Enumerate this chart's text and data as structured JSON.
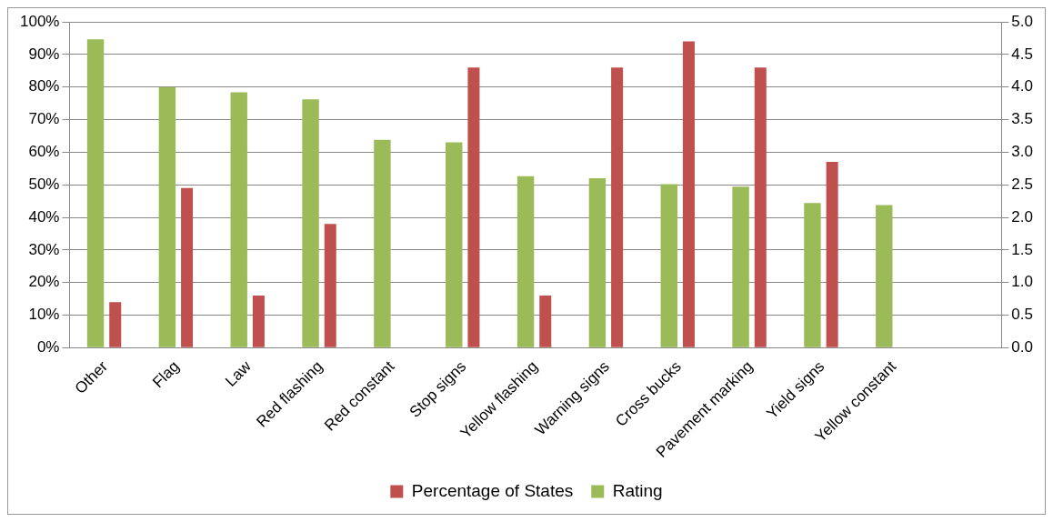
{
  "chart_data": {
    "type": "bar",
    "categories": [
      "Other",
      "Flag",
      "Law",
      "Red flashing",
      "Red constant",
      "Stop signs",
      "Yellow flashing",
      "Warning signs",
      "Cross bucks",
      "Pavement marking",
      "Yield signs",
      "Yellow constant",
      null
    ],
    "series": [
      {
        "name": "Percentage of States",
        "color": "#c0504d",
        "values": [
          14,
          49,
          16,
          38,
          null,
          86,
          16,
          86,
          94,
          86,
          57,
          null,
          null
        ]
      },
      {
        "name": "Rating",
        "color": "#9bbb59",
        "axis": "y2",
        "values": [
          4.73,
          4.0,
          3.92,
          3.81,
          3.19,
          3.15,
          2.63,
          2.6,
          2.51,
          2.47,
          2.22,
          2.19,
          null
        ]
      }
    ],
    "ylim": [
      0,
      100
    ],
    "yticks": [
      {
        "value": 0,
        "label": "0%"
      },
      {
        "value": 10,
        "label": "10%"
      },
      {
        "value": 20,
        "label": "20%"
      },
      {
        "value": 30,
        "label": "30%"
      },
      {
        "value": 40,
        "label": "40%"
      },
      {
        "value": 50,
        "label": "50%"
      },
      {
        "value": 60,
        "label": "60%"
      },
      {
        "value": 70,
        "label": "70%"
      },
      {
        "value": 80,
        "label": "80%"
      },
      {
        "value": 90,
        "label": "90%"
      },
      {
        "value": 100,
        "label": "100%"
      }
    ],
    "y2lim": [
      0,
      5
    ],
    "y2ticks": [
      {
        "value": 0,
        "label": "0.0"
      },
      {
        "value": 0.5,
        "label": "0.5"
      },
      {
        "value": 1,
        "label": "1.0"
      },
      {
        "value": 1.5,
        "label": "1.5"
      },
      {
        "value": 2,
        "label": "2.0"
      },
      {
        "value": 2.5,
        "label": "2.5"
      },
      {
        "value": 3,
        "label": "3.0"
      },
      {
        "value": 3.5,
        "label": "3.5"
      },
      {
        "value": 4,
        "label": "4.0"
      },
      {
        "value": 4.5,
        "label": "4.5"
      },
      {
        "value": 5,
        "label": "5.0"
      }
    ],
    "grid": "y",
    "legend": "bottom"
  }
}
